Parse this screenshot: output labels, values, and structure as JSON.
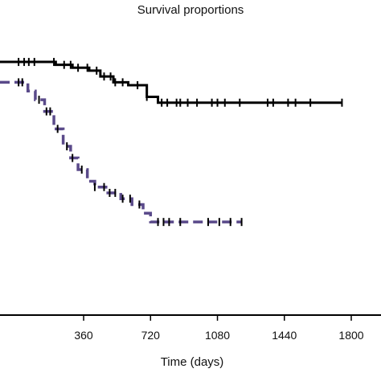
{
  "chart_data": {
    "type": "line",
    "chart_style": "kaplan-meier step plot with censor marks",
    "title": "Survival proportions",
    "xlabel": "Time (days)",
    "ylabel": "",
    "xlim": [
      -90,
      1960
    ],
    "ylim": [
      0,
      100
    ],
    "xticks": [
      360,
      720,
      1080,
      1440,
      1800
    ],
    "grid": false,
    "series": [
      {
        "color": "#000000",
        "dash": "solid",
        "steps": [
          [
            0,
            87
          ],
          [
            210,
            86
          ],
          [
            300,
            85
          ],
          [
            390,
            84
          ],
          [
            450,
            82
          ],
          [
            520,
            80
          ],
          [
            600,
            79
          ],
          [
            700,
            75
          ],
          [
            760,
            73
          ],
          [
            1750,
            73
          ]
        ],
        "censored": [
          10,
          40,
          65,
          95,
          200,
          255,
          290,
          330,
          380,
          430,
          470,
          505,
          530,
          570,
          650,
          700,
          780,
          810,
          860,
          880,
          920,
          970,
          1050,
          1080,
          1120,
          1200,
          1350,
          1380,
          1460,
          1500,
          1580,
          1750
        ]
      },
      {
        "color": "#5a4a8a",
        "dash": "dashed",
        "steps": [
          [
            0,
            80
          ],
          [
            60,
            77
          ],
          [
            100,
            74
          ],
          [
            150,
            70
          ],
          [
            200,
            64
          ],
          [
            250,
            58
          ],
          [
            290,
            54
          ],
          [
            330,
            50
          ],
          [
            380,
            46
          ],
          [
            420,
            44
          ],
          [
            480,
            42
          ],
          [
            560,
            40
          ],
          [
            620,
            38
          ],
          [
            680,
            35
          ],
          [
            720,
            32
          ],
          [
            1210,
            32
          ]
        ],
        "censored": [
          10,
          30,
          120,
          160,
          180,
          220,
          270,
          300,
          350,
          420,
          470,
          500,
          530,
          570,
          610,
          660,
          760,
          790,
          820,
          880,
          1030,
          1090,
          1150,
          1210
        ]
      }
    ]
  }
}
